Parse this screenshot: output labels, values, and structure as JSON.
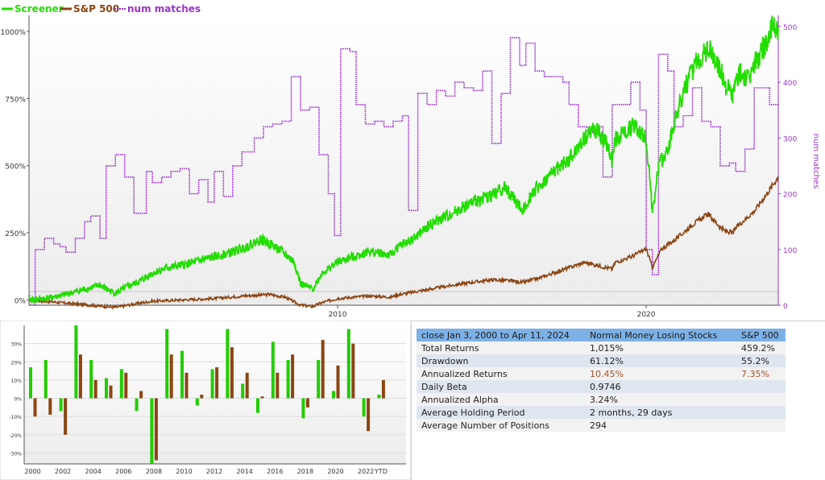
{
  "chart_data": [
    {
      "type": "line",
      "title": "",
      "legend": [
        "Screener",
        "S&P 500",
        "num matches"
      ],
      "legend_position": "top-left",
      "x_ticks": [
        "2010",
        "2020"
      ],
      "y_left_ticks": [
        "0%",
        "250%",
        "500%",
        "750%",
        "1000%"
      ],
      "y_left_range": [
        -20,
        1060
      ],
      "y_right_label": "num matches",
      "y_right_ticks": [
        "0",
        "100",
        "200",
        "300",
        "400",
        "500"
      ],
      "y_right_range": [
        0,
        520
      ],
      "x_range": [
        2000.0,
        2024.28
      ],
      "colors": {
        "screener": "#22dd00",
        "sp500": "#8b4513",
        "num_matches": "#9933cc"
      },
      "series": [
        {
          "name": "Screener",
          "points": [
            [
              2000.0,
              0
            ],
            [
              2000.5,
              5
            ],
            [
              2001.0,
              15
            ],
            [
              2001.5,
              30
            ],
            [
              2002.0,
              45
            ],
            [
              2002.3,
              55
            ],
            [
              2002.6,
              35
            ],
            [
              2002.8,
              25
            ],
            [
              2003.2,
              50
            ],
            [
              2003.6,
              70
            ],
            [
              2004.0,
              100
            ],
            [
              2004.5,
              120
            ],
            [
              2005.0,
              130
            ],
            [
              2005.5,
              145
            ],
            [
              2006.0,
              160
            ],
            [
              2006.5,
              175
            ],
            [
              2007.0,
              195
            ],
            [
              2007.5,
              225
            ],
            [
              2007.8,
              210
            ],
            [
              2008.0,
              195
            ],
            [
              2008.3,
              170
            ],
            [
              2008.6,
              140
            ],
            [
              2008.8,
              60
            ],
            [
              2009.2,
              40
            ],
            [
              2009.5,
              100
            ],
            [
              2010.0,
              140
            ],
            [
              2010.5,
              160
            ],
            [
              2011.0,
              180
            ],
            [
              2011.4,
              175
            ],
            [
              2011.7,
              165
            ],
            [
              2012.0,
              200
            ],
            [
              2012.5,
              230
            ],
            [
              2013.0,
              280
            ],
            [
              2013.5,
              310
            ],
            [
              2014.0,
              340
            ],
            [
              2014.5,
              370
            ],
            [
              2015.0,
              390
            ],
            [
              2015.4,
              420
            ],
            [
              2015.7,
              380
            ],
            [
              2016.0,
              330
            ],
            [
              2016.3,
              400
            ],
            [
              2016.7,
              440
            ],
            [
              2017.0,
              480
            ],
            [
              2017.5,
              520
            ],
            [
              2018.0,
              600
            ],
            [
              2018.3,
              640
            ],
            [
              2018.6,
              600
            ],
            [
              2018.8,
              560
            ],
            [
              2018.9,
              520
            ],
            [
              2019.0,
              600
            ],
            [
              2019.3,
              620
            ],
            [
              2019.6,
              650
            ],
            [
              2020.0,
              600
            ],
            [
              2020.1,
              480
            ],
            [
              2020.2,
              320
            ],
            [
              2020.4,
              500
            ],
            [
              2020.7,
              560
            ],
            [
              2021.0,
              700
            ],
            [
              2021.3,
              800
            ],
            [
              2021.6,
              880
            ],
            [
              2021.9,
              920
            ],
            [
              2022.0,
              940
            ],
            [
              2022.3,
              880
            ],
            [
              2022.6,
              800
            ],
            [
              2022.8,
              760
            ],
            [
              2023.0,
              850
            ],
            [
              2023.3,
              820
            ],
            [
              2023.6,
              900
            ],
            [
              2023.9,
              960
            ],
            [
              2024.1,
              1020
            ],
            [
              2024.28,
              1015
            ]
          ]
        },
        {
          "name": "S&P 500",
          "points": [
            [
              2000.0,
              0
            ],
            [
              2000.5,
              -5
            ],
            [
              2001.0,
              -10
            ],
            [
              2001.5,
              -15
            ],
            [
              2002.0,
              -20
            ],
            [
              2002.5,
              -25
            ],
            [
              2002.8,
              -28
            ],
            [
              2003.2,
              -20
            ],
            [
              2003.6,
              -12
            ],
            [
              2004.0,
              -5
            ],
            [
              2005.0,
              0
            ],
            [
              2006.0,
              5
            ],
            [
              2007.0,
              15
            ],
            [
              2007.8,
              20
            ],
            [
              2008.3,
              10
            ],
            [
              2008.8,
              -20
            ],
            [
              2009.2,
              -25
            ],
            [
              2009.5,
              -10
            ],
            [
              2010.0,
              5
            ],
            [
              2011.0,
              15
            ],
            [
              2011.7,
              10
            ],
            [
              2012.0,
              20
            ],
            [
              2013.0,
              40
            ],
            [
              2014.0,
              60
            ],
            [
              2015.0,
              75
            ],
            [
              2015.7,
              70
            ],
            [
              2016.0,
              65
            ],
            [
              2016.5,
              80
            ],
            [
              2017.0,
              100
            ],
            [
              2018.0,
              140
            ],
            [
              2018.9,
              115
            ],
            [
              2019.0,
              140
            ],
            [
              2019.5,
              160
            ],
            [
              2020.0,
              190
            ],
            [
              2020.2,
              120
            ],
            [
              2020.5,
              190
            ],
            [
              2021.0,
              230
            ],
            [
              2021.5,
              280
            ],
            [
              2022.0,
              320
            ],
            [
              2022.5,
              260
            ],
            [
              2022.8,
              250
            ],
            [
              2023.0,
              280
            ],
            [
              2023.5,
              330
            ],
            [
              2024.0,
              410
            ],
            [
              2024.28,
              459
            ]
          ]
        },
        {
          "name": "num matches",
          "steps": [
            [
              2000.0,
              0
            ],
            [
              2000.2,
              100
            ],
            [
              2000.5,
              120
            ],
            [
              2000.8,
              110
            ],
            [
              2001.0,
              105
            ],
            [
              2001.2,
              95
            ],
            [
              2001.5,
              120
            ],
            [
              2001.8,
              150
            ],
            [
              2002.0,
              160
            ],
            [
              2002.3,
              120
            ],
            [
              2002.5,
              250
            ],
            [
              2002.8,
              270
            ],
            [
              2003.1,
              230
            ],
            [
              2003.4,
              165
            ],
            [
              2003.8,
              240
            ],
            [
              2004.0,
              220
            ],
            [
              2004.3,
              230
            ],
            [
              2004.6,
              240
            ],
            [
              2004.9,
              245
            ],
            [
              2005.2,
              200
            ],
            [
              2005.5,
              225
            ],
            [
              2005.8,
              185
            ],
            [
              2006.0,
              240
            ],
            [
              2006.3,
              195
            ],
            [
              2006.6,
              250
            ],
            [
              2006.9,
              275
            ],
            [
              2007.3,
              300
            ],
            [
              2007.6,
              320
            ],
            [
              2007.9,
              325
            ],
            [
              2008.2,
              330
            ],
            [
              2008.5,
              410
            ],
            [
              2008.8,
              350
            ],
            [
              2009.1,
              355
            ],
            [
              2009.4,
              270
            ],
            [
              2009.7,
              200
            ],
            [
              2009.9,
              125
            ],
            [
              2010.1,
              460
            ],
            [
              2010.4,
              455
            ],
            [
              2010.6,
              360
            ],
            [
              2010.9,
              325
            ],
            [
              2011.2,
              330
            ],
            [
              2011.5,
              320
            ],
            [
              2011.8,
              330
            ],
            [
              2012.1,
              340
            ],
            [
              2012.3,
              170
            ],
            [
              2012.6,
              380
            ],
            [
              2012.9,
              360
            ],
            [
              2013.2,
              385
            ],
            [
              2013.5,
              375
            ],
            [
              2013.8,
              400
            ],
            [
              2014.1,
              390
            ],
            [
              2014.4,
              385
            ],
            [
              2014.7,
              420
            ],
            [
              2015.0,
              290
            ],
            [
              2015.3,
              380
            ],
            [
              2015.6,
              480
            ],
            [
              2015.9,
              430
            ],
            [
              2016.1,
              470
            ],
            [
              2016.4,
              420
            ],
            [
              2016.7,
              410
            ],
            [
              2017.0,
              410
            ],
            [
              2017.3,
              400
            ],
            [
              2017.5,
              360
            ],
            [
              2017.8,
              320
            ],
            [
              2018.1,
              310
            ],
            [
              2018.4,
              320
            ],
            [
              2018.6,
              230
            ],
            [
              2018.9,
              360
            ],
            [
              2019.2,
              360
            ],
            [
              2019.5,
              400
            ],
            [
              2019.8,
              350
            ],
            [
              2020.0,
              100
            ],
            [
              2020.2,
              55
            ],
            [
              2020.4,
              450
            ],
            [
              2020.7,
              420
            ],
            [
              2020.9,
              320
            ],
            [
              2021.2,
              340
            ],
            [
              2021.5,
              390
            ],
            [
              2021.8,
              330
            ],
            [
              2022.1,
              320
            ],
            [
              2022.4,
              250
            ],
            [
              2022.7,
              255
            ],
            [
              2022.9,
              240
            ],
            [
              2023.2,
              280
            ],
            [
              2023.5,
              390
            ],
            [
              2023.8,
              390
            ],
            [
              2024.0,
              360
            ]
          ]
        }
      ]
    },
    {
      "type": "bar",
      "title": "",
      "categories": [
        "2000",
        "2001",
        "2002",
        "2003",
        "2004",
        "2005",
        "2006",
        "2007",
        "2008",
        "2009",
        "2010",
        "2011",
        "2012",
        "2013",
        "2014",
        "2015",
        "2016",
        "2017",
        "2018",
        "2019",
        "2020",
        "2021",
        "2022",
        "YTD"
      ],
      "x_tick_labels": [
        "2000",
        "2002",
        "2004",
        "2006",
        "2008",
        "2010",
        "2012",
        "2014",
        "2016",
        "2018",
        "2020",
        "2022",
        "YTD"
      ],
      "y_ticks": [
        "-30%",
        "-20%",
        "-10%",
        "0%",
        "10%",
        "20%",
        "30%"
      ],
      "ylim": [
        -36,
        40
      ],
      "colors": {
        "screener": "#22cc00",
        "sp500": "#8b4513"
      },
      "series": [
        {
          "name": "Screener",
          "values": [
            17,
            21,
            -7,
            40,
            21,
            11,
            16,
            -7,
            -36,
            38,
            26,
            -4,
            16,
            38,
            8,
            -8,
            31,
            21,
            -11,
            21,
            4,
            38,
            -10,
            2
          ]
        },
        {
          "name": "S&P 500",
          "values": [
            -10,
            -9,
            -20,
            24,
            10,
            7,
            14,
            4,
            -34,
            24,
            14,
            2,
            17,
            28,
            14,
            1,
            14,
            24,
            -5,
            32,
            18,
            30,
            -18,
            10
          ]
        }
      ]
    }
  ],
  "stats": {
    "headers": [
      "close Jan 3, 2000 to Apr 11, 2024",
      "Normal Money Losing Stocks",
      "S&P 500"
    ],
    "rows": [
      {
        "label": "Total Returns",
        "screener": "1,015%",
        "sp500": "459.2%",
        "highlight": false
      },
      {
        "label": "Drawdown",
        "screener": "61.12%",
        "sp500": "55.2%",
        "highlight": false
      },
      {
        "label": "Annualized Returns",
        "screener": "10.45%",
        "sp500": "7.35%",
        "highlight": true
      },
      {
        "label": "Daily Beta",
        "screener": "0.9746",
        "sp500": "",
        "highlight": false
      },
      {
        "label": "Annualized Alpha",
        "screener": "3.24%",
        "sp500": "",
        "highlight": false
      },
      {
        "label": "Average Holding Period",
        "screener": "2 months, 29 days",
        "sp500": "",
        "highlight": false
      },
      {
        "label": "Average Number of Positions",
        "screener": "294",
        "sp500": "",
        "highlight": false
      }
    ]
  }
}
